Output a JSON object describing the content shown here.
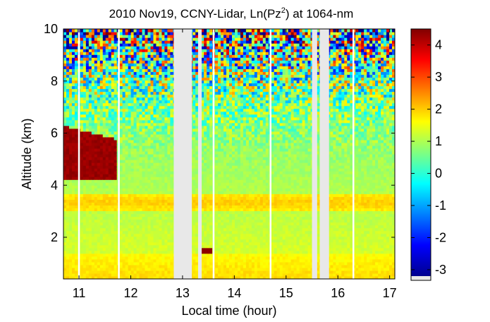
{
  "chart_data": {
    "type": "heatmap",
    "title_main": "2010 Nov19, CCNY-Lidar, Ln(Pz",
    "title_sup": "2",
    "title_tail": ") at 1064-nm",
    "xlabel": "Local time (hour)",
    "ylabel": "Altitude (km)",
    "xlim": [
      10.7,
      17.1
    ],
    "ylim": [
      0.4,
      10
    ],
    "x_ticks": [
      11,
      12,
      13,
      14,
      15,
      16,
      17
    ],
    "x_tick_labels": [
      "11",
      "12",
      "13",
      "14",
      "15",
      "16",
      "17"
    ],
    "y_ticks": [
      2,
      4,
      6,
      8,
      10
    ],
    "y_tick_labels": [
      "2",
      "4",
      "6",
      "8",
      "10"
    ],
    "colorbar": {
      "range": [
        -3.2,
        4.5
      ],
      "ticks": [
        4,
        3,
        2,
        1,
        0,
        -1,
        -2,
        -3
      ],
      "tick_labels": [
        "4",
        "3",
        "2",
        "1",
        "0",
        "-1",
        "-2",
        "-3"
      ],
      "colors": [
        "#00008f",
        "#0000ff",
        "#0080ff",
        "#00ffff",
        "#80ff80",
        "#ffff00",
        "#ff8000",
        "#ff0000",
        "#800000"
      ]
    },
    "no_data_color": "#e8e8e8",
    "data_gaps_hours": [
      [
        12.83,
        13.18
      ],
      [
        13.3,
        13.37
      ],
      [
        15.5,
        15.6
      ],
      [
        15.65,
        15.83
      ]
    ],
    "vertical_white_lines_hours": [
      11.0,
      11.77,
      13.6,
      14.7,
      16.3
    ],
    "features": [
      {
        "name": "cloud",
        "t_start": 10.7,
        "t_end": 11.75,
        "z_bottom": 4.2,
        "z_top": 6.3,
        "value": 4.3
      },
      {
        "name": "boundary_layer_top_band",
        "t_start": 10.7,
        "t_end": 17.1,
        "z_bottom": 3.0,
        "z_top": 3.7,
        "value": 2.0
      },
      {
        "name": "near_surface_layer",
        "t_start": 10.7,
        "t_end": 17.1,
        "z_bottom": 0.4,
        "z_top": 1.4,
        "value": 1.9
      },
      {
        "name": "low_level_hot_spots",
        "t_start": 13.35,
        "t_end": 13.6,
        "z_bottom": 1.4,
        "z_top": 1.65,
        "value": 4.4
      }
    ]
  }
}
